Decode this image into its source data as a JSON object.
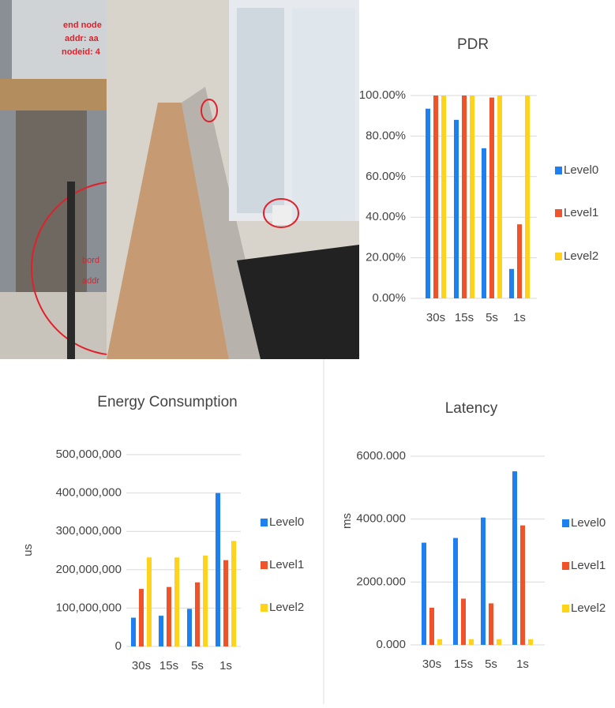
{
  "photo": {
    "labels": [
      "end node",
      "addr: aa",
      "nodeid: 4",
      "bord",
      "addr"
    ]
  },
  "chart_data": [
    {
      "type": "bar",
      "title": "PDR",
      "categories": [
        "30s",
        "15s",
        "5s",
        "1s"
      ],
      "series": [
        {
          "name": "Level0",
          "color": "#1e7ff0",
          "values": [
            93.5,
            88,
            74,
            14.5
          ]
        },
        {
          "name": "Level1",
          "color": "#f0522a",
          "values": [
            100,
            100,
            99,
            36.5
          ]
        },
        {
          "name": "Level2",
          "color": "#ffd21c",
          "values": [
            100,
            100,
            100,
            100
          ]
        }
      ],
      "ylim": [
        0,
        100
      ],
      "yticks": [
        {
          "value": 0,
          "label": "0.00%"
        },
        {
          "value": 20,
          "label": "20.00%"
        },
        {
          "value": 40,
          "label": "40.00%"
        },
        {
          "value": 60,
          "label": "60.00%"
        },
        {
          "value": 80,
          "label": "80.00%"
        },
        {
          "value": 100,
          "label": "100.00%"
        }
      ],
      "grid": true,
      "legend": "right"
    },
    {
      "type": "bar",
      "title": "Energy Consumption",
      "y_label": "us",
      "categories": [
        "30s",
        "15s",
        "5s",
        "1s"
      ],
      "series": [
        {
          "name": "Level0",
          "color": "#1e7ff0",
          "values": [
            75000000,
            80000000,
            98000000,
            400000000
          ]
        },
        {
          "name": "Level1",
          "color": "#f0522a",
          "values": [
            150000000,
            155000000,
            167000000,
            225000000
          ]
        },
        {
          "name": "Level2",
          "color": "#ffd21c",
          "values": [
            232000000,
            232000000,
            237000000,
            275000000
          ]
        }
      ],
      "ylim": [
        0,
        500000000
      ],
      "yticks": [
        0,
        {
          "value": 100000000,
          "label": "100,000,000"
        },
        {
          "value": 200000000,
          "label": "200,000,000"
        },
        {
          "value": 300000000,
          "label": "300,000,000"
        },
        {
          "value": 400000000,
          "label": "400,000,000"
        },
        {
          "value": 500000000,
          "label": "500,000,000"
        }
      ],
      "grid": true,
      "legend": "right"
    },
    {
      "type": "bar",
      "title": "Latency",
      "y_label": "ms",
      "categories": [
        "30s",
        "15s",
        "5s",
        "1s"
      ],
      "series": [
        {
          "name": "Level0",
          "color": "#1e7ff0",
          "values": [
            3250,
            3400,
            4050,
            5520
          ]
        },
        {
          "name": "Level1",
          "color": "#f0522a",
          "values": [
            1180,
            1470,
            1320,
            3800
          ]
        },
        {
          "name": "Level2",
          "color": "#ffd21c",
          "values": [
            180,
            180,
            180,
            180
          ]
        }
      ],
      "ylim": [
        0,
        6000
      ],
      "yticks": [
        {
          "value": 0,
          "label": "0.000"
        },
        {
          "value": 2000,
          "label": "2000.000"
        },
        {
          "value": 4000,
          "label": "4000.000"
        },
        {
          "value": 6000,
          "label": "6000.000"
        }
      ],
      "grid": true,
      "legend": "right"
    }
  ]
}
